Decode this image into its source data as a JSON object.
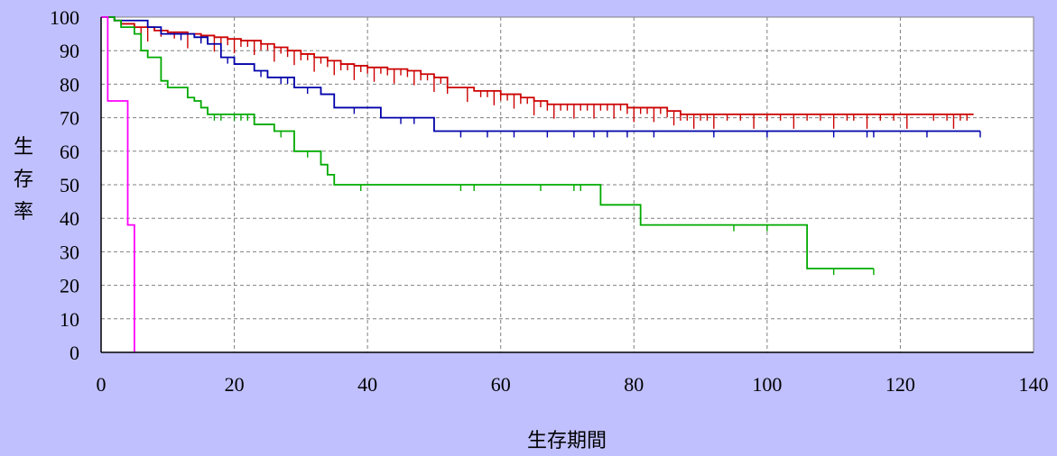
{
  "chart_data": {
    "type": "line",
    "step": true,
    "xlabel": "生存期間",
    "ylabel": "生存率",
    "xlim": [
      0,
      140
    ],
    "ylim": [
      0,
      100
    ],
    "x_ticks": [
      "0",
      "20",
      "40",
      "60",
      "80",
      "100",
      "120",
      "140"
    ],
    "y_ticks": [
      "0",
      "10",
      "20",
      "30",
      "40",
      "50",
      "60",
      "70",
      "80",
      "90",
      "100"
    ],
    "grid": true,
    "series": [
      {
        "color": "#cc0000",
        "points": [
          [
            0,
            100
          ],
          [
            2,
            99
          ],
          [
            3,
            98
          ],
          [
            5,
            97
          ],
          [
            8,
            96
          ],
          [
            10,
            95.5
          ],
          [
            13,
            95
          ],
          [
            15,
            94.5
          ],
          [
            17,
            94
          ],
          [
            19,
            93.5
          ],
          [
            21,
            93
          ],
          [
            24,
            92
          ],
          [
            26,
            91
          ],
          [
            28,
            90
          ],
          [
            30,
            89
          ],
          [
            32,
            88
          ],
          [
            34,
            87
          ],
          [
            36,
            86
          ],
          [
            38,
            85.5
          ],
          [
            40,
            85
          ],
          [
            43,
            84.5
          ],
          [
            46,
            84
          ],
          [
            48,
            83
          ],
          [
            50,
            82
          ],
          [
            52,
            79
          ],
          [
            56,
            78
          ],
          [
            60,
            77
          ],
          [
            63,
            76
          ],
          [
            65,
            75
          ],
          [
            67,
            74
          ],
          [
            79,
            73
          ],
          [
            85,
            72
          ],
          [
            87,
            71
          ],
          [
            131,
            71
          ]
        ],
        "censor_x": [
          6,
          7,
          9,
          11,
          13,
          15,
          16,
          17,
          18,
          19,
          20,
          21,
          22,
          23,
          24,
          25,
          26,
          27,
          28,
          29,
          30,
          31,
          32,
          33,
          34,
          35,
          36,
          37,
          38,
          39,
          40,
          41,
          42,
          43,
          44,
          45,
          46,
          47,
          48,
          49,
          50,
          51,
          52,
          55,
          57,
          58,
          59,
          60,
          61,
          62,
          63,
          64,
          65,
          66,
          67,
          68,
          69,
          70,
          71,
          72,
          73,
          74,
          75,
          76,
          77,
          78,
          79,
          80,
          81,
          82,
          83,
          84,
          85,
          86,
          87,
          88,
          89,
          90,
          91,
          92,
          94,
          96,
          98,
          100,
          102,
          104,
          106,
          108,
          110,
          112,
          113,
          115,
          117,
          119,
          121,
          125,
          127,
          128,
          129,
          130
        ]
      },
      {
        "color": "#0000aa",
        "points": [
          [
            0,
            100
          ],
          [
            2,
            99
          ],
          [
            7,
            97
          ],
          [
            9,
            95
          ],
          [
            14,
            94
          ],
          [
            16,
            92
          ],
          [
            18,
            88
          ],
          [
            20,
            86
          ],
          [
            23,
            84
          ],
          [
            25,
            82
          ],
          [
            29,
            79
          ],
          [
            33,
            77
          ],
          [
            35,
            73
          ],
          [
            42,
            70
          ],
          [
            50,
            66
          ],
          [
            132,
            66
          ]
        ],
        "censor_x": [
          12,
          15,
          19,
          24,
          27,
          28,
          31,
          38,
          45,
          47,
          54,
          58,
          62,
          67,
          71,
          74,
          76,
          79,
          83,
          92,
          100,
          110,
          115,
          116,
          124,
          132
        ]
      },
      {
        "color": "#00aa00",
        "points": [
          [
            0,
            100
          ],
          [
            2,
            99
          ],
          [
            3,
            97
          ],
          [
            5,
            95
          ],
          [
            6,
            90
          ],
          [
            7,
            88
          ],
          [
            9,
            81
          ],
          [
            10,
            79
          ],
          [
            13,
            76
          ],
          [
            14,
            75
          ],
          [
            15,
            73
          ],
          [
            16,
            71
          ],
          [
            23,
            68
          ],
          [
            26,
            66
          ],
          [
            29,
            60
          ],
          [
            33,
            56
          ],
          [
            34,
            53
          ],
          [
            35,
            50
          ],
          [
            75,
            44
          ],
          [
            81,
            38
          ],
          [
            106,
            25
          ],
          [
            116,
            25
          ]
        ],
        "censor_x": [
          17,
          18,
          20,
          21,
          22,
          27,
          31,
          39,
          54,
          56,
          66,
          71,
          72,
          95,
          100,
          110,
          116
        ]
      },
      {
        "color": "#ff00ff",
        "points": [
          [
            0,
            100
          ],
          [
            1,
            75
          ],
          [
            4,
            38
          ],
          [
            5,
            0
          ]
        ],
        "censor_x": []
      }
    ]
  }
}
